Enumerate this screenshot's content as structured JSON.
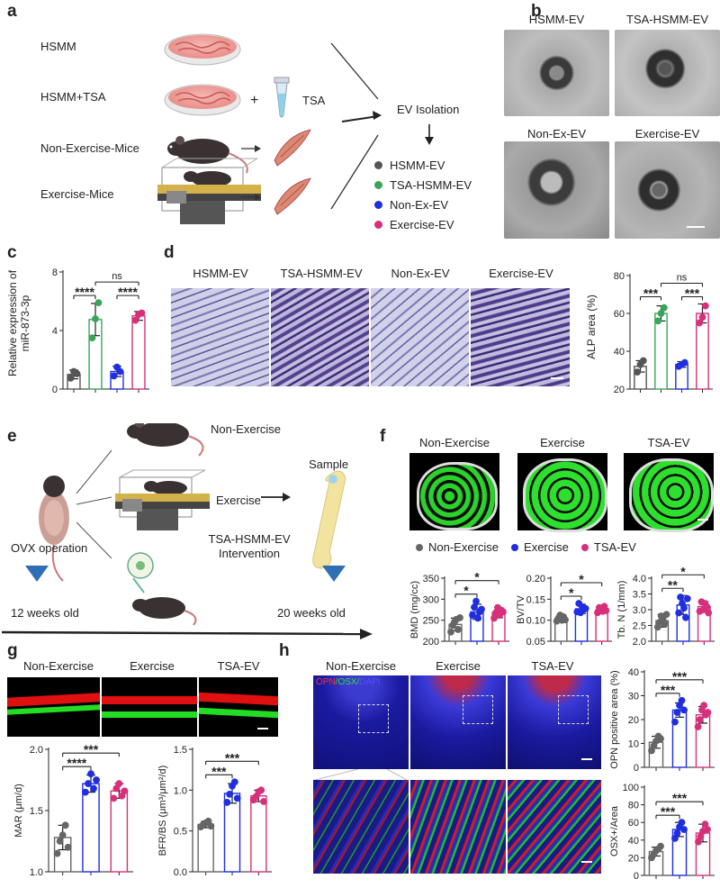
{
  "panels": {
    "a": "a",
    "b": "b",
    "c": "c",
    "d": "d",
    "e": "e",
    "f": "f",
    "g": "g",
    "h": "h"
  },
  "a": {
    "rows": [
      "HSMM",
      "HSMM+TSA",
      "Non-Exercise-Mice",
      "Exercise-Mice"
    ],
    "plus": "+",
    "tsa": "TSA",
    "ev_isolation": "EV Isolation",
    "legend": [
      {
        "label": "HSMM-EV",
        "color": "#555555"
      },
      {
        "label": "TSA-HSMM-EV",
        "color": "#3aa55a"
      },
      {
        "label": "Non-Ex-EV",
        "color": "#1f2ee0"
      },
      {
        "label": "Exercise-EV",
        "color": "#d6307a"
      }
    ]
  },
  "b": {
    "titles": [
      "HSMM-EV",
      "TSA-HSMM-EV",
      "Non-Ex-EV",
      "Exercise-EV"
    ]
  },
  "c": {
    "ylabel_line1": "Relative expression of",
    "ylabel_line2": "miR-873-3p"
  },
  "d": {
    "titles": [
      "HSMM-EV",
      "TSA-HSMM-EV",
      "Non-Ex-EV",
      "Exercise-EV"
    ],
    "ylabel": "ALP area (%)"
  },
  "e": {
    "non_exercise": "Non-Exercise",
    "exercise": "Exercise",
    "sample": "Sample",
    "ovx": "OVX operation",
    "intervention_line1": "TSA-HSMM-EV",
    "intervention_line2": "Intervention",
    "start_age": "12 weeks old",
    "end_age": "20 weeks old"
  },
  "f": {
    "titles": [
      "Non-Exercise",
      "Exercise",
      "TSA-EV"
    ],
    "legend": [
      {
        "label": "Non-Exercise",
        "color": "#666666"
      },
      {
        "label": "Exercise",
        "color": "#1f2ee0"
      },
      {
        "label": "TSA-EV",
        "color": "#d6307a"
      }
    ]
  },
  "g": {
    "titles": [
      "Non-Exercise",
      "Exercise",
      "TSA-EV"
    ]
  },
  "h": {
    "titles": [
      "Non-Exercise",
      "Exercise",
      "TSA-EV"
    ],
    "stain_opn": "OPN",
    "stain_osx": "/OSX/",
    "stain_dapi": "DAPI"
  },
  "chart_data": [
    {
      "id": "c",
      "type": "bar",
      "categories": [
        "HSMM-EV",
        "TSA-HSMM-EV",
        "Non-Ex-EV",
        "Exercise-EV"
      ],
      "values": [
        1.0,
        4.75,
        1.2,
        5.0
      ],
      "errors": [
        0.3,
        1.1,
        0.35,
        0.3
      ],
      "points": [
        [
          0.75,
          1.2,
          1.05
        ],
        [
          3.5,
          4.8,
          5.9
        ],
        [
          0.9,
          1.5,
          1.2
        ],
        [
          4.7,
          5.1,
          5.2
        ]
      ],
      "colors": [
        "#555555",
        "#3aa55a",
        "#1f2ee0",
        "#d6307a"
      ],
      "ylabel": "Relative expression of miR-873-3p",
      "ylim": [
        0,
        8
      ],
      "yticks": [
        0,
        4,
        8
      ],
      "brackets": [
        {
          "from": 0,
          "to": 1,
          "label": "****",
          "level": 0
        },
        {
          "from": 2,
          "to": 3,
          "label": "****",
          "level": 0
        },
        {
          "from": 1,
          "to": 3,
          "label": "ns",
          "level": 1
        }
      ]
    },
    {
      "id": "d",
      "type": "bar",
      "categories": [
        "HSMM-EV",
        "TSA-HSMM-EV",
        "Non-Ex-EV",
        "Exercise-EV"
      ],
      "values": [
        32,
        60,
        33,
        60
      ],
      "errors": [
        3,
        4,
        1.5,
        5
      ],
      "points": [
        [
          29,
          33,
          35
        ],
        [
          56,
          60,
          63
        ],
        [
          32,
          33,
          34
        ],
        [
          55,
          58,
          64
        ]
      ],
      "colors": [
        "#555555",
        "#3aa55a",
        "#1f2ee0",
        "#d6307a"
      ],
      "ylabel": "ALP area (%)",
      "ylim": [
        20,
        80
      ],
      "yticks": [
        20,
        40,
        60,
        80
      ],
      "brackets": [
        {
          "from": 0,
          "to": 1,
          "label": "***",
          "level": 0
        },
        {
          "from": 2,
          "to": 3,
          "label": "***",
          "level": 0
        },
        {
          "from": 1,
          "to": 3,
          "label": "ns",
          "level": 1
        }
      ]
    },
    {
      "id": "f1",
      "type": "bar",
      "categories": [
        "Non-Exercise",
        "Exercise",
        "TSA-EV"
      ],
      "values": [
        240,
        270,
        268
      ],
      "errors": [
        15,
        18,
        12
      ],
      "points": [
        [
          222,
          238,
          246,
          252,
          228,
          256
        ],
        [
          262,
          281,
          295,
          255,
          270,
          276
        ],
        [
          255,
          268,
          280,
          262,
          274,
          270
        ]
      ],
      "colors": [
        "#666666",
        "#1f2ee0",
        "#d6307a"
      ],
      "ylabel": "BMD (mg/cc)",
      "ylim": [
        200,
        350
      ],
      "yticks": [
        200,
        250,
        300,
        350
      ],
      "brackets": [
        {
          "from": 0,
          "to": 1,
          "label": "*",
          "level": 0
        },
        {
          "from": 0,
          "to": 2,
          "label": "*",
          "level": 1
        }
      ]
    },
    {
      "id": "f2",
      "type": "bar",
      "categories": [
        "Non-Exercise",
        "Exercise",
        "TSA-EV"
      ],
      "values": [
        0.104,
        0.127,
        0.125
      ],
      "errors": [
        0.008,
        0.011,
        0.008
      ],
      "points": [
        [
          0.098,
          0.105,
          0.112,
          0.1,
          0.108,
          0.101
        ],
        [
          0.12,
          0.14,
          0.118,
          0.132,
          0.126,
          0.128
        ],
        [
          0.118,
          0.13,
          0.126,
          0.121,
          0.133,
          0.123
        ]
      ],
      "colors": [
        "#666666",
        "#1f2ee0",
        "#d6307a"
      ],
      "ylabel": "BV/TV",
      "ylim": [
        0.05,
        0.2
      ],
      "yticks": [
        0.05,
        0.1,
        0.15,
        0.2
      ],
      "brackets": [
        {
          "from": 0,
          "to": 1,
          "label": "*",
          "level": 0
        },
        {
          "from": 0,
          "to": 2,
          "label": "*",
          "level": 1
        }
      ]
    },
    {
      "id": "f3",
      "type": "bar",
      "categories": [
        "Non-Exercise",
        "Exercise",
        "TSA-EV"
      ],
      "values": [
        2.65,
        3.15,
        3.1
      ],
      "errors": [
        0.2,
        0.3,
        0.15
      ],
      "points": [
        [
          2.45,
          2.6,
          2.8,
          2.7,
          2.55,
          2.85
        ],
        [
          2.9,
          3.4,
          3.2,
          3.05,
          2.75,
          3.35
        ],
        [
          2.95,
          3.25,
          3.0,
          3.2,
          3.1,
          2.9
        ]
      ],
      "colors": [
        "#666666",
        "#1f2ee0",
        "#d6307a"
      ],
      "ylabel": "Tb. N (1/mm)",
      "ylim": [
        2.0,
        4.0
      ],
      "yticks": [
        2.0,
        2.5,
        3.0,
        3.5,
        4.0
      ],
      "brackets": [
        {
          "from": 0,
          "to": 1,
          "label": "**",
          "level": 0
        },
        {
          "from": 0,
          "to": 2,
          "label": "*",
          "level": 1
        }
      ]
    },
    {
      "id": "g1",
      "type": "bar",
      "categories": [
        "Non-Exercise",
        "Exercise",
        "TSA-EV"
      ],
      "values": [
        1.28,
        1.72,
        1.66
      ],
      "errors": [
        0.1,
        0.07,
        0.06
      ],
      "points": [
        [
          1.15,
          1.25,
          1.3,
          1.38,
          1.2
        ],
        [
          1.65,
          1.72,
          1.8,
          1.68,
          1.75
        ],
        [
          1.6,
          1.68,
          1.72,
          1.62,
          1.66
        ]
      ],
      "colors": [
        "#666666",
        "#1f2ee0",
        "#d6307a"
      ],
      "ylabel": "MAR (μm/d)",
      "ylim": [
        1.0,
        2.0
      ],
      "yticks": [
        1.0,
        1.5,
        2.0
      ],
      "brackets": [
        {
          "from": 0,
          "to": 1,
          "label": "****",
          "level": 0
        },
        {
          "from": 0,
          "to": 2,
          "label": "***",
          "level": 1
        }
      ]
    },
    {
      "id": "g2",
      "type": "bar",
      "categories": [
        "Non-Exercise",
        "Exercise",
        "TSA-EV"
      ],
      "values": [
        0.58,
        0.96,
        0.93
      ],
      "errors": [
        0.04,
        0.12,
        0.07
      ],
      "points": [
        [
          0.55,
          0.58,
          0.6,
          0.62,
          0.56
        ],
        [
          0.85,
          0.95,
          1.05,
          1.1,
          0.9
        ],
        [
          0.88,
          0.92,
          0.98,
          1.0,
          0.86
        ]
      ],
      "colors": [
        "#666666",
        "#1f2ee0",
        "#d6307a"
      ],
      "ylabel": "BFR/BS (μm³/μm²/d)",
      "ylim": [
        0,
        1.5
      ],
      "yticks": [
        0,
        0.5,
        1.0,
        1.5
      ],
      "brackets": [
        {
          "from": 0,
          "to": 1,
          "label": "***",
          "level": 0
        },
        {
          "from": 0,
          "to": 2,
          "label": "***",
          "level": 1
        }
      ]
    },
    {
      "id": "h1",
      "type": "bar",
      "categories": [
        "Non-Exercise",
        "Exercise",
        "TSA-EV"
      ],
      "values": [
        10.5,
        24,
        22
      ],
      "errors": [
        2.5,
        3,
        3.5
      ],
      "points": [
        [
          7,
          9,
          11,
          13,
          12
        ],
        [
          19,
          23,
          26,
          28,
          24
        ],
        [
          17,
          20,
          24,
          26,
          22,
          23
        ]
      ],
      "colors": [
        "#666666",
        "#1f2ee0",
        "#d6307a"
      ],
      "ylabel": "OPN positive area (%)",
      "ylim": [
        0,
        40
      ],
      "yticks": [
        0,
        10,
        20,
        30,
        40
      ],
      "brackets": [
        {
          "from": 0,
          "to": 1,
          "label": "***",
          "level": 0
        },
        {
          "from": 0,
          "to": 2,
          "label": "***",
          "level": 1
        }
      ]
    },
    {
      "id": "h2",
      "type": "bar",
      "categories": [
        "Non-Exercise",
        "Exercise",
        "TSA-EV"
      ],
      "values": [
        27,
        52,
        48
      ],
      "errors": [
        5,
        8,
        10
      ],
      "points": [
        [
          20,
          24,
          28,
          30,
          33
        ],
        [
          42,
          48,
          55,
          60,
          52
        ],
        [
          38,
          44,
          50,
          58,
          52
        ]
      ],
      "colors": [
        "#666666",
        "#1f2ee0",
        "#d6307a"
      ],
      "ylabel": "OSX+/Area",
      "ylim": [
        0,
        100
      ],
      "yticks": [
        0,
        20,
        40,
        60,
        80,
        100
      ],
      "brackets": [
        {
          "from": 0,
          "to": 1,
          "label": "***",
          "level": 0
        },
        {
          "from": 0,
          "to": 2,
          "label": "***",
          "level": 1
        }
      ]
    }
  ]
}
